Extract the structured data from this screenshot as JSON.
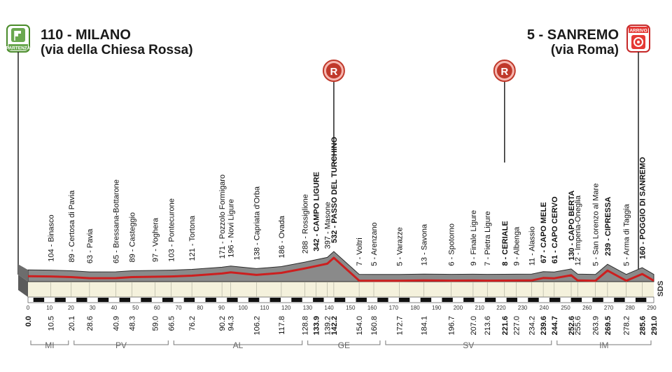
{
  "start": {
    "line1": "110 - MILANO",
    "line2": "(via della Chiesa Rossa)",
    "badge": "PARTENZA",
    "icon": "start-flag-icon",
    "badge_color": "#6aa84f"
  },
  "finish": {
    "line1": "5 - SANREMO",
    "line2": "(via Roma)",
    "badge": "ARRIVO",
    "icon": "finish-target-icon",
    "badge_color": "#e53935"
  },
  "refuel_label": "R",
  "credit": "SDS",
  "colors": {
    "profile_fill": "#8a8a8a",
    "road_line": "#cc1f1f",
    "base_fill": "#f4f1dc",
    "base_dark": "#3a3a3a",
    "marker_red": "#c0392b"
  },
  "chart_data": {
    "type": "area",
    "title": "",
    "xlabel": "",
    "ylabel": "",
    "xlim": [
      0,
      291
    ],
    "x_ticks": [
      0,
      10,
      20,
      30,
      40,
      50,
      60,
      70,
      80,
      90,
      100,
      110,
      120,
      130,
      140,
      150,
      160,
      170,
      180,
      190,
      200,
      210,
      220,
      230,
      240,
      250,
      260,
      270,
      280,
      290
    ],
    "waypoints": [
      {
        "km": "0.0",
        "x": 0,
        "label": "",
        "alt": 110,
        "bold": true
      },
      {
        "km": "10.5",
        "x": 10.5,
        "label": "104 - Binasco",
        "alt": 104,
        "bold": false
      },
      {
        "km": "20.1",
        "x": 20.1,
        "label": "89 - Certosa di Pavia",
        "alt": 89,
        "bold": false
      },
      {
        "km": "28.6",
        "x": 28.6,
        "label": "63 - Pavia",
        "alt": 63,
        "bold": false
      },
      {
        "km": "40.9",
        "x": 40.9,
        "label": "65 - Bressana-Bottarone",
        "alt": 65,
        "bold": false
      },
      {
        "km": "48.3",
        "x": 48.3,
        "label": "89 - Casteggio",
        "alt": 89,
        "bold": false
      },
      {
        "km": "59.0",
        "x": 59.0,
        "label": "97 - Voghera",
        "alt": 97,
        "bold": false
      },
      {
        "km": "66.5",
        "x": 66.5,
        "label": "103 - Pontecurone",
        "alt": 103,
        "bold": false
      },
      {
        "km": "76.2",
        "x": 76.2,
        "label": "121 - Tortona",
        "alt": 121,
        "bold": false
      },
      {
        "km": "90.2",
        "x": 90.2,
        "label": "171 - Pozzolo Formigaro",
        "alt": 171,
        "bold": false
      },
      {
        "km": "94.3",
        "x": 94.3,
        "label": "196 - Novi Ligure",
        "alt": 196,
        "bold": false
      },
      {
        "km": "106.2",
        "x": 106.2,
        "label": "138 - Capriata d'Orba",
        "alt": 138,
        "bold": false
      },
      {
        "km": "117.8",
        "x": 117.8,
        "label": "186 - Ovada",
        "alt": 186,
        "bold": false
      },
      {
        "km": "128.8",
        "x": 128.8,
        "label": "288 - Rossiglione",
        "alt": 288,
        "bold": false
      },
      {
        "km": "133.9",
        "x": 133.9,
        "label": "342 - CAMPO LIGURE",
        "alt": 342,
        "bold": true
      },
      {
        "km": "139.2",
        "x": 139.2,
        "label": "397 - Masone",
        "alt": 397,
        "bold": false
      },
      {
        "km": "142.2",
        "x": 142.2,
        "label": "532 - PASSO DEL TURCHINO",
        "alt": 532,
        "bold": true
      },
      {
        "km": "154.0",
        "x": 154.0,
        "label": "7 - Voltri",
        "alt": 7,
        "bold": false
      },
      {
        "km": "160.8",
        "x": 160.8,
        "label": "5 - Arenzano",
        "alt": 5,
        "bold": false
      },
      {
        "km": "172.7",
        "x": 172.7,
        "label": "5 - Varazze",
        "alt": 5,
        "bold": false
      },
      {
        "km": "184.1",
        "x": 184.1,
        "label": "13 - Savona",
        "alt": 13,
        "bold": false
      },
      {
        "km": "196.7",
        "x": 196.7,
        "label": "6 - Spotorno",
        "alt": 6,
        "bold": false
      },
      {
        "km": "207.0",
        "x": 207.0,
        "label": "9 - Finale Ligure",
        "alt": 9,
        "bold": false
      },
      {
        "km": "213.6",
        "x": 213.6,
        "label": "7 - Pietra Ligure",
        "alt": 7,
        "bold": false
      },
      {
        "km": "221.6",
        "x": 221.6,
        "label": "8 - CERIALE",
        "alt": 8,
        "bold": true
      },
      {
        "km": "227.0",
        "x": 227.0,
        "label": "9 - Albenga",
        "alt": 9,
        "bold": false
      },
      {
        "km": "234.2",
        "x": 234.2,
        "label": "11 - Alassio",
        "alt": 11,
        "bold": false
      },
      {
        "km": "239.6",
        "x": 239.6,
        "label": "67 - CAPO MELE",
        "alt": 67,
        "bold": true
      },
      {
        "km": "244.7",
        "x": 244.7,
        "label": "61 - CAPO CERVO",
        "alt": 61,
        "bold": true
      },
      {
        "km": "252.6",
        "x": 252.6,
        "label": "130 - CAPO BERTA",
        "alt": 130,
        "bold": true
      },
      {
        "km": "255.6",
        "x": 255.6,
        "label": "12 - Imperia-Oneglia",
        "alt": 12,
        "bold": false
      },
      {
        "km": "263.9",
        "x": 263.9,
        "label": "5 - San Lorenzo al Mare",
        "alt": 5,
        "bold": false
      },
      {
        "km": "269.5",
        "x": 269.5,
        "label": "239 - CIPRESSA",
        "alt": 239,
        "bold": true
      },
      {
        "km": "278.2",
        "x": 278.2,
        "label": "5 - Arma di Taggia",
        "alt": 5,
        "bold": false
      },
      {
        "km": "285.6",
        "x": 285.6,
        "label": "160 - POGGIO DI SANREMO",
        "alt": 160,
        "bold": true
      },
      {
        "km": "291.0",
        "x": 291.0,
        "label": "",
        "alt": 5,
        "bold": true
      }
    ],
    "feed_zones": [
      142.2,
      221.6
    ],
    "provinces": [
      {
        "label": "MI",
        "from": 0,
        "to": 20.1
      },
      {
        "label": "PV",
        "from": 20.1,
        "to": 66.5
      },
      {
        "label": "AL",
        "from": 66.5,
        "to": 128.8
      },
      {
        "label": "GE",
        "from": 128.8,
        "to": 165
      },
      {
        "label": "SV",
        "from": 165,
        "to": 244.7
      },
      {
        "label": "IM",
        "from": 244.7,
        "to": 291.0
      }
    ]
  }
}
